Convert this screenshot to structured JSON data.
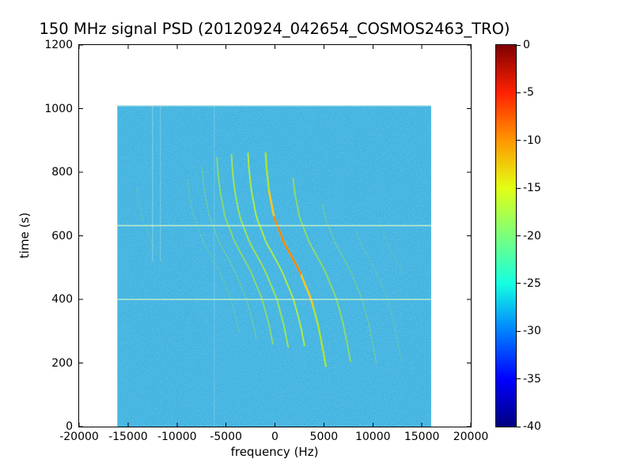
{
  "chart_data": {
    "type": "heatmap",
    "subtype": "spectrogram",
    "title": "150 MHz signal PSD (20120924_042654_COSMOS2463_TRO)",
    "xlabel": "frequency (Hz)",
    "ylabel": "time (s)",
    "xlim": [
      -20000,
      20000
    ],
    "ylim": [
      0,
      1200
    ],
    "x_ticks": [
      -20000,
      -15000,
      -10000,
      -5000,
      0,
      5000,
      10000,
      15000,
      20000
    ],
    "x_tick_labels": [
      "-20000",
      "-15000",
      "-10000",
      "-5000",
      "0",
      "5000",
      "10000",
      "15000",
      "20000"
    ],
    "y_ticks": [
      0,
      200,
      400,
      600,
      800,
      1000,
      1200
    ],
    "y_tick_labels": [
      "0",
      "200",
      "400",
      "600",
      "800",
      "1000",
      "1200"
    ],
    "grid": false,
    "colorbar": {
      "vmax": 0,
      "vmin": -40,
      "colormap": "jet",
      "ticks": [
        0,
        -5,
        -10,
        -15,
        -20,
        -25,
        -30,
        -35,
        -40
      ],
      "tick_labels": [
        "0",
        "-5",
        "-10",
        "-15",
        "-20",
        "-25",
        "-30",
        "-35",
        "-40"
      ],
      "gradient_stops": [
        {
          "pos": 0.0,
          "color": "#800000"
        },
        {
          "pos": 0.125,
          "color": "#ff2100"
        },
        {
          "pos": 0.25,
          "color": "#ff9700"
        },
        {
          "pos": 0.375,
          "color": "#e2ff14"
        },
        {
          "pos": 0.5,
          "color": "#7bff7b"
        },
        {
          "pos": 0.625,
          "color": "#14ffe2"
        },
        {
          "pos": 0.75,
          "color": "#0080ff"
        },
        {
          "pos": 0.875,
          "color": "#0000ff"
        },
        {
          "pos": 1.0,
          "color": "#000080"
        }
      ]
    },
    "data_extent": {
      "f_min": -16100,
      "f_max": 15950,
      "t_min": 0,
      "t_max": 1010
    },
    "noise_floor_db": -28,
    "background_color": "#44b5e2",
    "doppler_curve": {
      "description": "S-shaped Doppler chirp traces of the COSMOS 2463 satellite pass; received frequency decreases with time, steepest near closest approach (~t=530 s)",
      "points_hz_s": [
        [
          5200,
          190
        ],
        [
          4850,
          250
        ],
        [
          4400,
          320
        ],
        [
          3700,
          400
        ],
        [
          2500,
          490
        ],
        [
          900,
          580
        ],
        [
          -100,
          660
        ],
        [
          -600,
          740
        ],
        [
          -850,
          810
        ],
        [
          -950,
          860
        ]
      ]
    },
    "traces": [
      {
        "offset_hz": -13500,
        "color": "#8fdc64",
        "opacity": 0.25,
        "width": 1.5,
        "t_start": 500,
        "t_end": 750,
        "dash": "2 2.5"
      },
      {
        "offset_hz": -8200,
        "color": "#8fdc64",
        "opacity": 0.4,
        "width": 1.5,
        "t_start": 300,
        "t_end": 780,
        "dash": "2 2.5"
      },
      {
        "offset_hz": -6600,
        "color": "#96e05a",
        "opacity": 0.5,
        "width": 1.5,
        "t_start": 280,
        "t_end": 820,
        "dash": "3 2"
      },
      {
        "offset_hz": -5000,
        "color": "#9ce44e",
        "opacity": 0.75,
        "width": 2,
        "t_start": 260,
        "t_end": 845
      },
      {
        "offset_hz": -3500,
        "color": "#a6e84a",
        "opacity": 0.9,
        "width": 2,
        "t_start": 250,
        "t_end": 855
      },
      {
        "offset_hz": -1800,
        "color": "#b2ec42",
        "opacity": 0.95,
        "width": 2,
        "t_start": 255,
        "t_end": 860
      },
      {
        "offset_hz": 0,
        "color": "#a8e43c",
        "opacity": 1,
        "width": 2.5,
        "t_start": 190,
        "t_end": 860
      },
      {
        "offset_hz": 0,
        "color": "#ffc61e",
        "opacity": 1,
        "width": 2.5,
        "t_start": 380,
        "t_end": 740
      },
      {
        "offset_hz": 0,
        "color": "#ff7b00",
        "opacity": 1,
        "width": 2,
        "t_start": 480,
        "t_end": 660
      },
      {
        "offset_hz": 2600,
        "color": "#9ce44e",
        "opacity": 0.8,
        "width": 2,
        "t_start": 205,
        "t_end": 780
      },
      {
        "offset_hz": 5200,
        "color": "#96e05a",
        "opacity": 0.55,
        "width": 1.5,
        "t_start": 200,
        "t_end": 700,
        "dash": "3 2"
      },
      {
        "offset_hz": 7800,
        "color": "#8fdc64",
        "opacity": 0.35,
        "width": 1.5,
        "t_start": 210,
        "t_end": 620,
        "dash": "2 2.5"
      },
      {
        "offset_hz": 10500,
        "color": "#8fdc64",
        "opacity": 0.25,
        "width": 1.5,
        "t_start": 480,
        "t_end": 650,
        "dash": "2 2.5"
      }
    ],
    "horizontal_artifact_lines_s": [
      400,
      632
    ],
    "vertical_artifacts": [
      {
        "f_hz": -12500,
        "t_start": 520,
        "t_end": 1010,
        "opacity": 0.3
      },
      {
        "f_hz": -11700,
        "t_start": 520,
        "t_end": 1010,
        "opacity": 0.22
      },
      {
        "f_hz": -6200,
        "t_start": 0,
        "t_end": 1010,
        "opacity": 0.18
      }
    ]
  }
}
